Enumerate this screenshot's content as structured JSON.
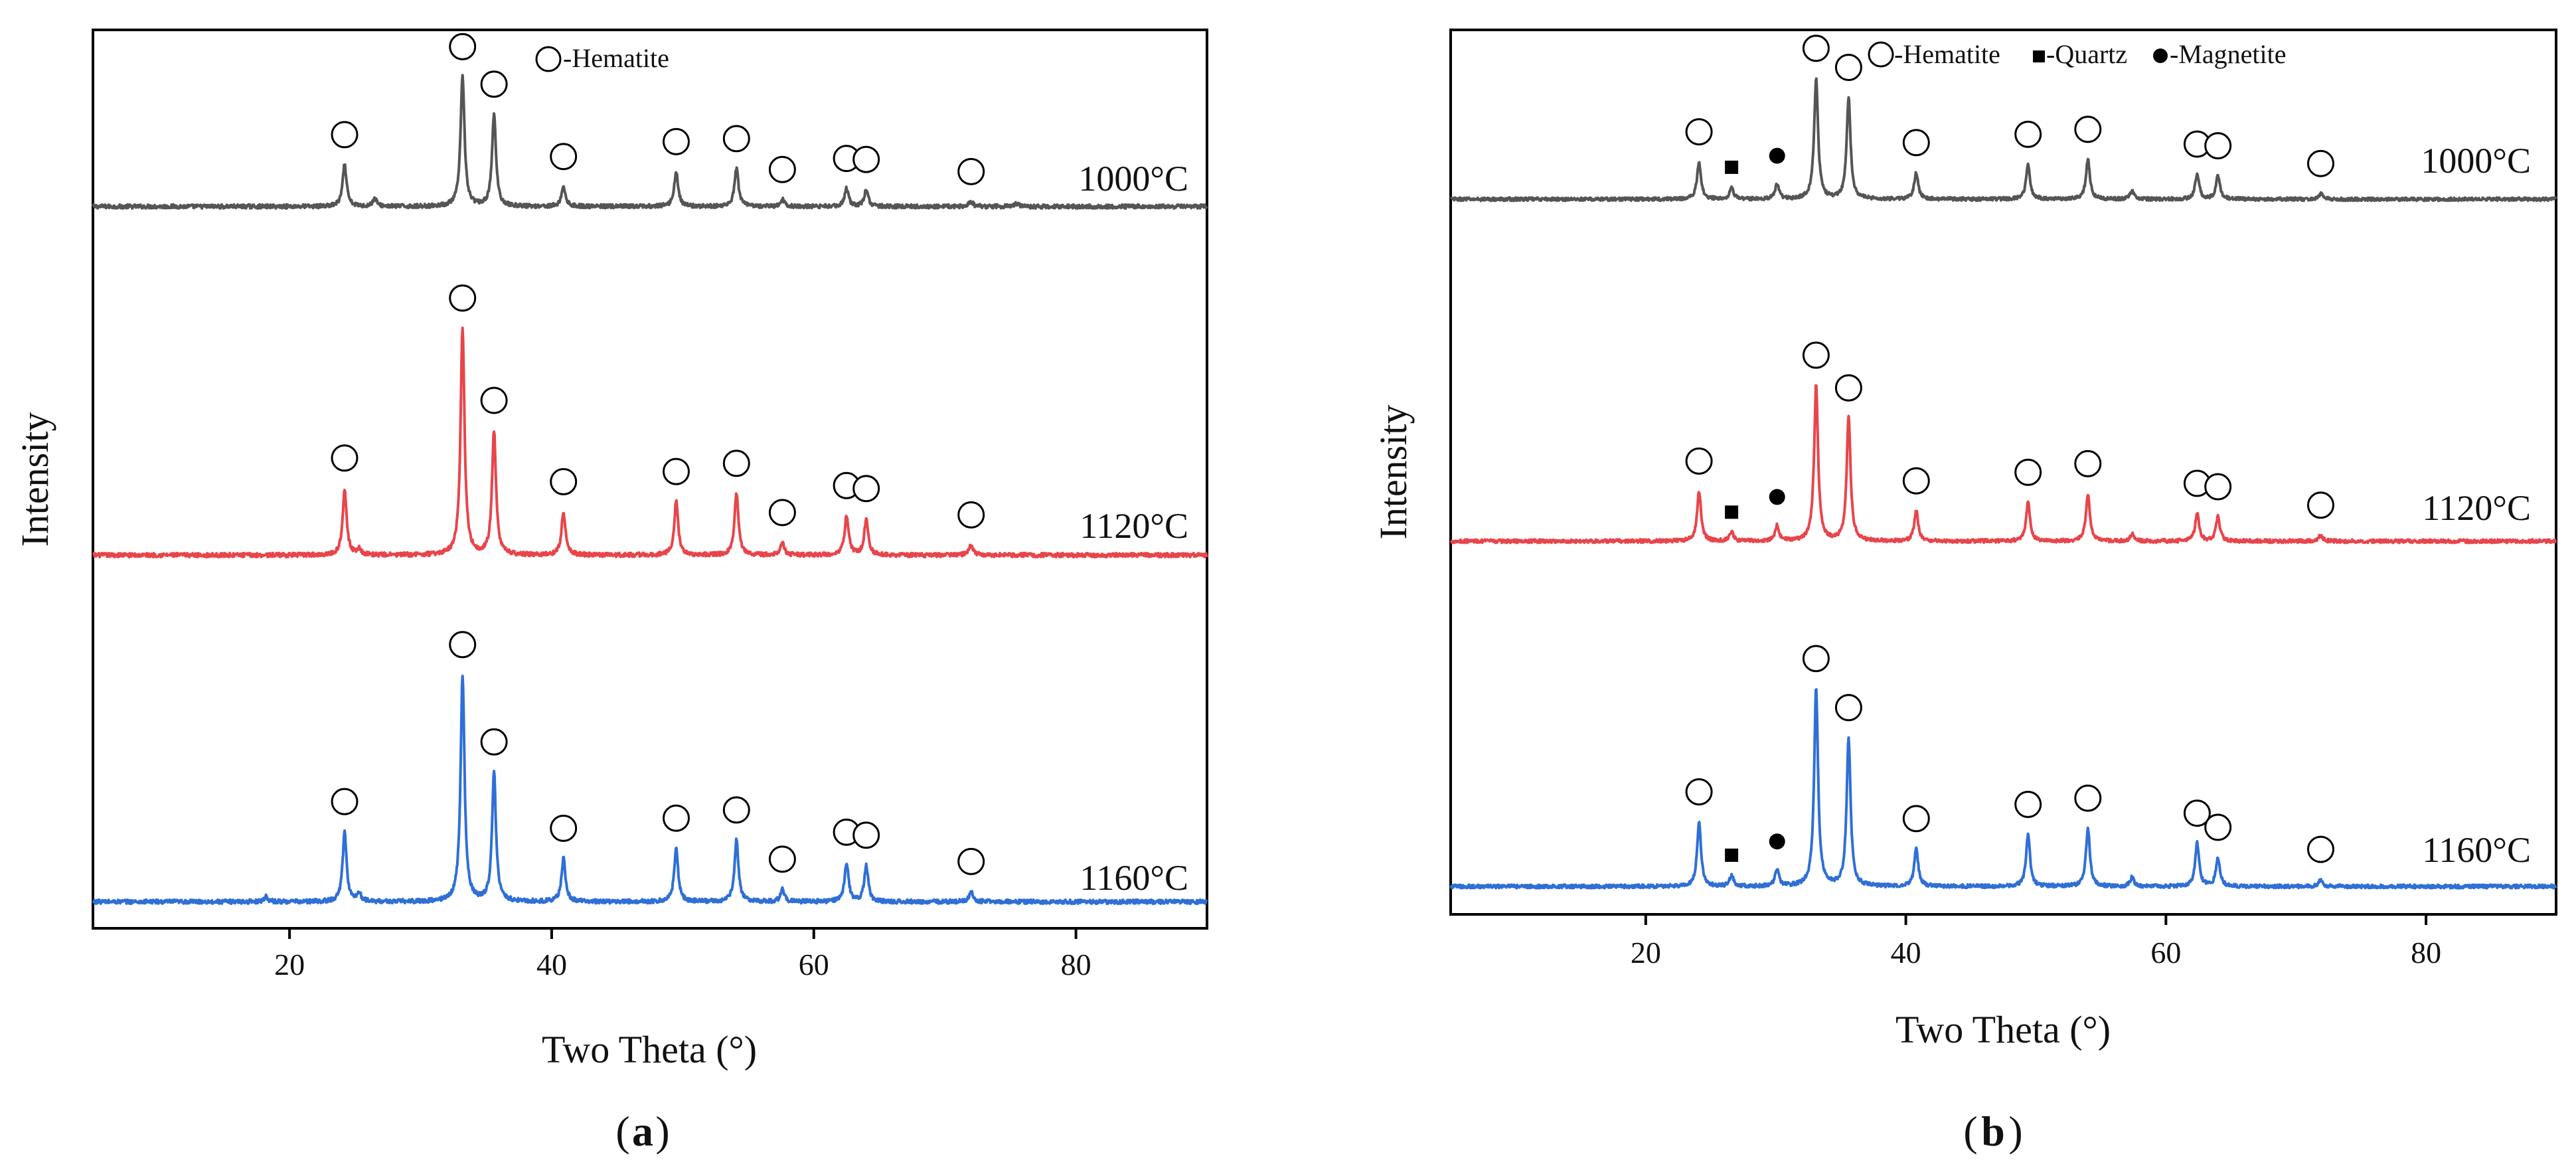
{
  "figure": {
    "panels": [
      {
        "id": "a",
        "panel_label": "a",
        "legend": "-Hematite",
        "xlabel": "Two Theta (°)",
        "ylabel": "Intensity",
        "traces": [
          {
            "label": "1000°C",
            "color": "#555555"
          },
          {
            "label": "1120°C",
            "color": "#e8454b"
          },
          {
            "label": "1160°C",
            "color": "#2f6fd6"
          }
        ]
      },
      {
        "id": "b",
        "panel_label": "b",
        "legend_hematite": "-Hematite",
        "legend_quartz": "-Quartz",
        "legend_magnetite": "-Magnetite",
        "xlabel": "Two Theta (°)",
        "ylabel": "Intensity",
        "traces": [
          {
            "label": "1000°C",
            "color": "#555555"
          },
          {
            "label": "1120°C",
            "color": "#e8454b"
          },
          {
            "label": "1160°C",
            "color": "#2f6fd6"
          }
        ]
      }
    ]
  },
  "chart_data": [
    {
      "type": "line",
      "panel": "a",
      "title": "",
      "xlabel": "Two Theta (°)",
      "ylabel": "Intensity",
      "xlim": [
        5,
        90
      ],
      "xticks": [
        20,
        40,
        60,
        80
      ],
      "yticks": [],
      "legend": [
        "Hematite"
      ],
      "series": [
        {
          "name": "1000°C",
          "color": "#555555",
          "baseline": 1.0,
          "noise": 0.02,
          "peaks": [
            [
              24.2,
              0.42
            ],
            [
              26.5,
              0.08
            ],
            [
              33.2,
              1.3
            ],
            [
              35.6,
              0.92
            ],
            [
              40.9,
              0.2
            ],
            [
              49.5,
              0.35
            ],
            [
              54.1,
              0.38
            ],
            [
              57.6,
              0.07
            ],
            [
              62.5,
              0.18
            ],
            [
              64.0,
              0.17
            ],
            [
              72.0,
              0.05
            ],
            [
              75.5,
              0.03
            ]
          ],
          "markers": [
            {
              "type": "hematite",
              "x": 24.2
            },
            {
              "type": "hematite",
              "x": 33.2
            },
            {
              "type": "hematite",
              "x": 35.6
            },
            {
              "type": "hematite",
              "x": 40.9
            },
            {
              "type": "hematite",
              "x": 49.5
            },
            {
              "type": "hematite",
              "x": 54.1
            },
            {
              "type": "hematite",
              "x": 57.6
            },
            {
              "type": "hematite",
              "x": 62.5
            },
            {
              "type": "hematite",
              "x": 64.0
            },
            {
              "type": "hematite",
              "x": 72.0
            }
          ]
        },
        {
          "name": "1120°C",
          "color": "#e8454b",
          "baseline": 1.0,
          "noise": 0.02,
          "peaks": [
            [
              24.2,
              0.65
            ],
            [
              25.3,
              0.06
            ],
            [
              33.2,
              2.2
            ],
            [
              35.6,
              1.2
            ],
            [
              40.9,
              0.42
            ],
            [
              49.5,
              0.52
            ],
            [
              54.1,
              0.6
            ],
            [
              57.6,
              0.12
            ],
            [
              62.5,
              0.38
            ],
            [
              64.0,
              0.35
            ],
            [
              72.0,
              0.1
            ]
          ],
          "markers": [
            {
              "type": "hematite",
              "x": 24.2
            },
            {
              "type": "hematite",
              "x": 33.2
            },
            {
              "type": "hematite",
              "x": 35.6
            },
            {
              "type": "hematite",
              "x": 40.9
            },
            {
              "type": "hematite",
              "x": 49.5
            },
            {
              "type": "hematite",
              "x": 54.1
            },
            {
              "type": "hematite",
              "x": 57.6
            },
            {
              "type": "hematite",
              "x": 62.5
            },
            {
              "type": "hematite",
              "x": 64.0
            },
            {
              "type": "hematite",
              "x": 72.0
            }
          ]
        },
        {
          "name": "1160°C",
          "color": "#2f6fd6",
          "baseline": 1.0,
          "noise": 0.02,
          "peaks": [
            [
              18.2,
              0.05
            ],
            [
              24.2,
              0.68
            ],
            [
              25.3,
              0.08
            ],
            [
              33.2,
              2.2
            ],
            [
              35.6,
              1.25
            ],
            [
              40.9,
              0.42
            ],
            [
              49.5,
              0.52
            ],
            [
              54.1,
              0.6
            ],
            [
              57.6,
              0.12
            ],
            [
              62.5,
              0.38
            ],
            [
              64.0,
              0.35
            ],
            [
              72.0,
              0.1
            ]
          ],
          "markers": [
            {
              "type": "hematite",
              "x": 24.2
            },
            {
              "type": "hematite",
              "x": 33.2
            },
            {
              "type": "hematite",
              "x": 35.6
            },
            {
              "type": "hematite",
              "x": 40.9
            },
            {
              "type": "hematite",
              "x": 49.5
            },
            {
              "type": "hematite",
              "x": 54.1
            },
            {
              "type": "hematite",
              "x": 57.6
            },
            {
              "type": "hematite",
              "x": 62.5
            },
            {
              "type": "hematite",
              "x": 64.0
            },
            {
              "type": "hematite",
              "x": 72.0
            }
          ]
        }
      ]
    },
    {
      "type": "line",
      "panel": "b",
      "title": "",
      "xlabel": "Two Theta (°)",
      "ylabel": "Intensity",
      "xlim": [
        5,
        90
      ],
      "xticks": [
        20,
        40,
        60,
        80
      ],
      "yticks": [],
      "legend": [
        "Hematite",
        "Quartz",
        "Magnetite"
      ],
      "series": [
        {
          "name": "1000°C",
          "color": "#555555",
          "baseline": 1.0,
          "noise": 0.02,
          "peaks": [
            [
              24.1,
              0.45
            ],
            [
              26.6,
              0.14
            ],
            [
              30.1,
              0.18
            ],
            [
              33.1,
              1.45
            ],
            [
              35.6,
              1.22
            ],
            [
              40.8,
              0.32
            ],
            [
              49.4,
              0.42
            ],
            [
              54.0,
              0.48
            ],
            [
              57.4,
              0.1
            ],
            [
              62.4,
              0.3
            ],
            [
              64.0,
              0.28
            ],
            [
              71.9,
              0.07
            ]
          ],
          "markers": [
            {
              "type": "hematite",
              "x": 24.1
            },
            {
              "type": "quartz",
              "x": 26.6
            },
            {
              "type": "magnetite",
              "x": 30.1
            },
            {
              "type": "hematite",
              "x": 33.1
            },
            {
              "type": "hematite",
              "x": 35.6
            },
            {
              "type": "hematite",
              "x": 40.8
            },
            {
              "type": "hematite",
              "x": 49.4
            },
            {
              "type": "hematite",
              "x": 54.0
            },
            {
              "type": "hematite",
              "x": 62.4
            },
            {
              "type": "hematite",
              "x": 64.0
            },
            {
              "type": "hematite",
              "x": 71.9
            }
          ]
        },
        {
          "name": "1120°C",
          "color": "#e8454b",
          "baseline": 1.0,
          "noise": 0.02,
          "peaks": [
            [
              24.1,
              0.58
            ],
            [
              26.6,
              0.1
            ],
            [
              30.1,
              0.18
            ],
            [
              33.1,
              1.8
            ],
            [
              35.6,
              1.42
            ],
            [
              40.8,
              0.35
            ],
            [
              49.4,
              0.45
            ],
            [
              54.0,
              0.55
            ],
            [
              57.4,
              0.08
            ],
            [
              62.4,
              0.32
            ],
            [
              64.0,
              0.28
            ],
            [
              71.9,
              0.07
            ]
          ],
          "markers": [
            {
              "type": "hematite",
              "x": 24.1
            },
            {
              "type": "quartz",
              "x": 26.6
            },
            {
              "type": "magnetite",
              "x": 30.1
            },
            {
              "type": "hematite",
              "x": 33.1
            },
            {
              "type": "hematite",
              "x": 35.6
            },
            {
              "type": "hematite",
              "x": 40.8
            },
            {
              "type": "hematite",
              "x": 49.4
            },
            {
              "type": "hematite",
              "x": 54.0
            },
            {
              "type": "hematite",
              "x": 62.4
            },
            {
              "type": "hematite",
              "x": 64.0
            },
            {
              "type": "hematite",
              "x": 71.9
            }
          ]
        },
        {
          "name": "1160°C",
          "color": "#2f6fd6",
          "baseline": 1.0,
          "noise": 0.02,
          "peaks": [
            [
              24.1,
              0.72
            ],
            [
              26.6,
              0.12
            ],
            [
              30.1,
              0.18
            ],
            [
              33.1,
              2.2
            ],
            [
              35.6,
              1.65
            ],
            [
              40.8,
              0.42
            ],
            [
              49.4,
              0.58
            ],
            [
              54.0,
              0.65
            ],
            [
              57.4,
              0.1
            ],
            [
              62.4,
              0.48
            ],
            [
              64.0,
              0.32
            ],
            [
              71.9,
              0.08
            ]
          ],
          "markers": [
            {
              "type": "hematite",
              "x": 24.1
            },
            {
              "type": "quartz",
              "x": 26.6
            },
            {
              "type": "magnetite",
              "x": 30.1
            },
            {
              "type": "hematite",
              "x": 33.1
            },
            {
              "type": "hematite",
              "x": 35.6
            },
            {
              "type": "hematite",
              "x": 40.8
            },
            {
              "type": "hematite",
              "x": 49.4
            },
            {
              "type": "hematite",
              "x": 54.0
            },
            {
              "type": "hematite",
              "x": 62.4
            },
            {
              "type": "hematite",
              "x": 64.0
            },
            {
              "type": "hematite",
              "x": 71.9
            }
          ]
        }
      ]
    }
  ]
}
